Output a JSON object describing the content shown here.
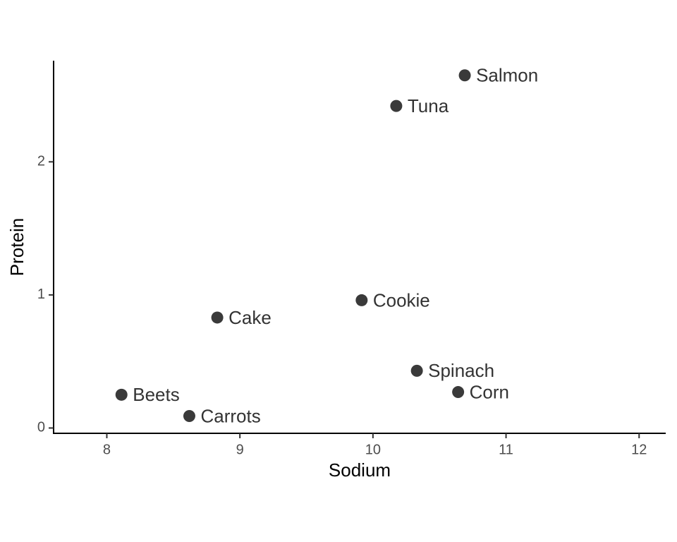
{
  "chart_data": {
    "type": "scatter",
    "x_label": "Sodium",
    "y_label": "Protein",
    "labels": [
      "Salmon",
      "Tuna",
      "Cookie",
      "Cake",
      "Spinach",
      "Corn",
      "Beets",
      "Carrots"
    ],
    "x": [
      10.69,
      10.175,
      9.915,
      8.83,
      10.33,
      10.64,
      8.11,
      8.62
    ],
    "values": [
      2.65,
      2.42,
      0.96,
      0.83,
      0.43,
      0.27,
      0.25,
      0.09
    ],
    "color": "#3a3a3a",
    "xlim": [
      7.6,
      12.2
    ],
    "xticks": [
      8,
      9,
      10,
      11,
      12
    ],
    "ylim": [
      -0.04,
      2.76
    ],
    "yticks": [
      0,
      1,
      2
    ],
    "grid": false
  }
}
